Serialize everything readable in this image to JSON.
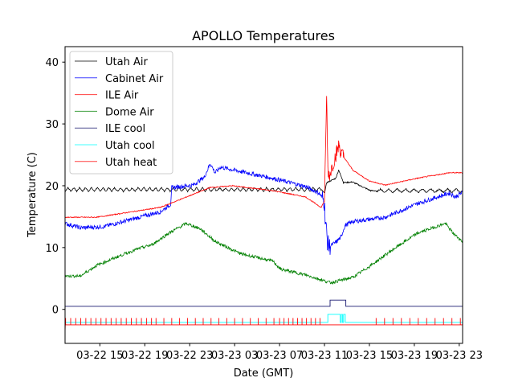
{
  "chart_data": {
    "type": "line",
    "title": "APOLLO Temperatures",
    "xlabel": "Date (GMT)",
    "ylabel": "Temperature (C)",
    "x_units": "hours since 03-22 00:00 GMT",
    "xlim": [
      11.9,
      47.3
    ],
    "ylim": [
      -5.5,
      42.5
    ],
    "grid": false,
    "legend_position": "upper-left",
    "x_ticks": [
      {
        "value": 15,
        "label": "03-22 15"
      },
      {
        "value": 19,
        "label": "03-22 19"
      },
      {
        "value": 23,
        "label": "03-22 23"
      },
      {
        "value": 27,
        "label": "03-23 03"
      },
      {
        "value": 31,
        "label": "03-23 07"
      },
      {
        "value": 35,
        "label": "03-23 11"
      },
      {
        "value": 39,
        "label": "03-23 15"
      },
      {
        "value": 43,
        "label": "03-23 19"
      },
      {
        "value": 47,
        "label": "03-23 23"
      }
    ],
    "y_ticks": [
      {
        "value": 0,
        "label": "0"
      },
      {
        "value": 10,
        "label": "10"
      },
      {
        "value": 20,
        "label": "20"
      },
      {
        "value": 30,
        "label": "30"
      },
      {
        "value": 40,
        "label": "40"
      }
    ],
    "series": [
      {
        "name": "Utah Air",
        "color": "#000000",
        "noise": 0.1,
        "sawtooth": [
          {
            "from": 11.9,
            "to": 34.7,
            "period": 0.52,
            "amplitude": 0.6
          },
          {
            "from": 39.6,
            "to": 47.3,
            "period": 0.75,
            "amplitude": 0.6
          }
        ],
        "points": [
          [
            11.9,
            19.4
          ],
          [
            34.69,
            19.4
          ],
          [
            35.0,
            18.8
          ],
          [
            35.2,
            20.5
          ],
          [
            36.0,
            21.2
          ],
          [
            36.26,
            22.5
          ],
          [
            36.5,
            21.5
          ],
          [
            36.69,
            20.5
          ],
          [
            37.5,
            20.6
          ],
          [
            39.11,
            19.2
          ],
          [
            47.26,
            19.2
          ]
        ]
      },
      {
        "name": "Cabinet Air",
        "color": "#0000ff",
        "noise": 0.35,
        "points": [
          [
            11.9,
            13.9
          ],
          [
            13.26,
            13.2
          ],
          [
            15.4,
            13.4
          ],
          [
            20.4,
            15.8
          ],
          [
            21.3,
            17
          ],
          [
            21.4,
            19.7
          ],
          [
            23.3,
            20.1
          ],
          [
            24.3,
            21.4
          ],
          [
            24.83,
            23.6
          ],
          [
            25.26,
            22.1
          ],
          [
            25.76,
            23
          ],
          [
            27.54,
            22.3
          ],
          [
            30.4,
            21.2
          ],
          [
            33.26,
            19.9
          ],
          [
            34.54,
            18.8
          ],
          [
            34.97,
            17.5
          ],
          [
            35.11,
            14
          ],
          [
            35.26,
            11
          ],
          [
            35.4,
            10.1
          ],
          [
            36.1,
            11
          ],
          [
            36.47,
            11.7
          ],
          [
            36.83,
            13.6
          ],
          [
            37.54,
            14.2
          ],
          [
            40.4,
            14.9
          ],
          [
            43.26,
            17.1
          ],
          [
            46.1,
            18.8
          ],
          [
            46.69,
            18.2
          ],
          [
            47.26,
            18.9
          ]
        ]
      },
      {
        "name": "ILE Air",
        "color": "#ff0000",
        "noise": 0.08,
        "points": [
          [
            11.9,
            14.9
          ],
          [
            14.7,
            14.9
          ],
          [
            20.4,
            16.5
          ],
          [
            24.8,
            19.7
          ],
          [
            26.8,
            20
          ],
          [
            30.4,
            19.2
          ],
          [
            33.3,
            18.2
          ],
          [
            34.7,
            16.5
          ],
          [
            35.0,
            17.5
          ],
          [
            35.19,
            34.5
          ],
          [
            35.3,
            23
          ],
          [
            35.4,
            21.5
          ],
          [
            36.1,
            25.5
          ],
          [
            36.3,
            26.6
          ],
          [
            36.47,
            25.3
          ],
          [
            36.69,
            24.7
          ],
          [
            37.54,
            22.5
          ],
          [
            38.97,
            20.8
          ],
          [
            40.4,
            20.1
          ],
          [
            43.26,
            21.2
          ],
          [
            46.1,
            22.1
          ],
          [
            47.26,
            22.1
          ]
        ]
      },
      {
        "name": "Dome Air",
        "color": "#008000",
        "noise": 0.25,
        "points": [
          [
            11.9,
            5.4
          ],
          [
            13.26,
            5.4
          ],
          [
            14.7,
            7.1
          ],
          [
            16.83,
            8.7
          ],
          [
            18.26,
            9.7
          ],
          [
            19.69,
            10.5
          ],
          [
            21.11,
            12.3
          ],
          [
            22.69,
            13.9
          ],
          [
            23.97,
            13
          ],
          [
            25.26,
            11
          ],
          [
            27.54,
            9
          ],
          [
            30.4,
            7.8
          ],
          [
            31.1,
            6.5
          ],
          [
            33.26,
            5.6
          ],
          [
            34.69,
            4.8
          ],
          [
            35.54,
            4.3
          ],
          [
            37.54,
            5.2
          ],
          [
            38.97,
            6.9
          ],
          [
            41.11,
            9.7
          ],
          [
            43.26,
            12.3
          ],
          [
            45.76,
            13.9
          ],
          [
            46.47,
            12.3
          ],
          [
            47.26,
            11
          ]
        ]
      },
      {
        "name": "ILE cool",
        "color": "#191970",
        "step": true,
        "points": [
          [
            11.9,
            0.5
          ],
          [
            35.5,
            0.5
          ],
          [
            35.5,
            1.5
          ],
          [
            36.9,
            1.5
          ],
          [
            36.9,
            0.5
          ],
          [
            47.3,
            0.5
          ]
        ]
      },
      {
        "name": "Utah cool",
        "color": "#00ffff",
        "step": true,
        "points": [
          [
            11.9,
            -2.1
          ],
          [
            35.3,
            -2.1
          ],
          [
            35.3,
            -0.8
          ],
          [
            36.4,
            -0.8
          ],
          [
            36.4,
            -2.1
          ],
          [
            36.5,
            -2.1
          ],
          [
            36.5,
            -0.8
          ],
          [
            36.6,
            -0.8
          ],
          [
            36.6,
            -2.1
          ],
          [
            36.7,
            -2.1
          ],
          [
            36.7,
            -0.8
          ],
          [
            36.85,
            -0.8
          ],
          [
            36.85,
            -2.1
          ],
          [
            47.3,
            -2.1
          ]
        ]
      },
      {
        "name": "Utah heat",
        "color": "#ff0000",
        "step": true,
        "baseline": -2.5,
        "pulse_level": -1.4,
        "pulses": [
          {
            "from": 11.95,
            "to": 20.0,
            "period": 0.45
          },
          {
            "from": 20.0,
            "to": 31.0,
            "period": 0.7
          },
          {
            "from": 31.0,
            "to": 34.8,
            "period": 0.4
          },
          {
            "from": 39.6,
            "to": 47.3,
            "period": 0.75
          }
        ],
        "points": [
          [
            11.9,
            -3.6
          ],
          [
            11.92,
            -2.5
          ],
          [
            47.3,
            -2.5
          ]
        ]
      }
    ]
  }
}
